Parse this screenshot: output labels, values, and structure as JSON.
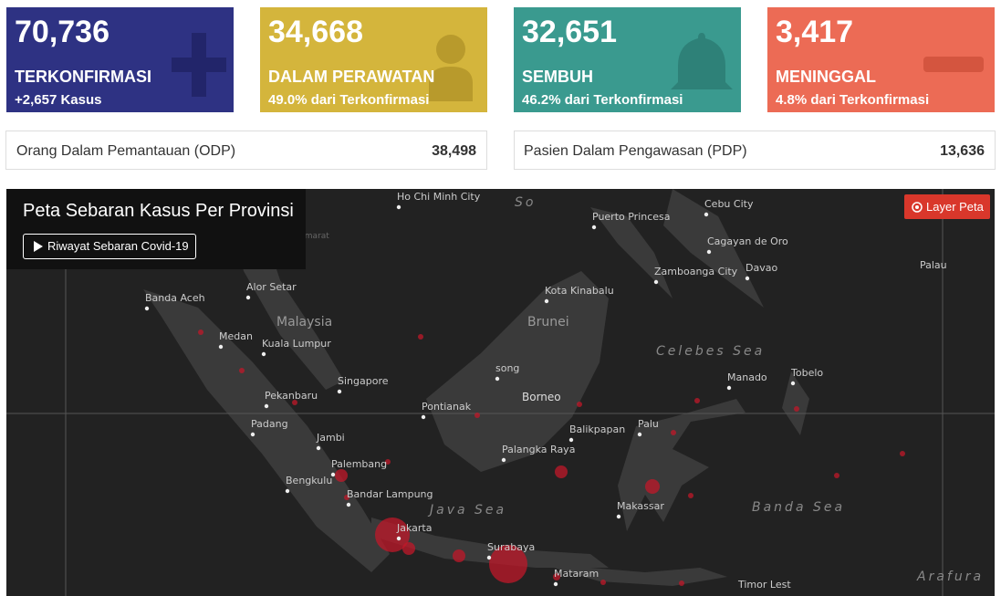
{
  "cards": [
    {
      "value": "70,736",
      "label": "TERKONFIRMASI",
      "sub": "+2,657 Kasus"
    },
    {
      "value": "34,668",
      "label": "DALAM PERAWATAN",
      "sub": "49.0% dari Terkonfirmasi"
    },
    {
      "value": "32,651",
      "label": "SEMBUH",
      "sub": "46.2% dari Terkonfirmasi"
    },
    {
      "value": "3,417",
      "label": "MENINGGAL",
      "sub": "4.8% dari Terkonfirmasi"
    }
  ],
  "monitoring": [
    {
      "label": "Orang Dalam Pemantauan (ODP)",
      "value": "38,498"
    },
    {
      "label": "Pasien Dalam Pengawasan (PDP)",
      "value": "13,636"
    }
  ],
  "map": {
    "title": "Peta Sebaran Kasus Per Provinsi",
    "history_button": "Riwayat Sebaran Covid-19",
    "layer_button": "Layer Peta",
    "places": [
      "Ho Chi Minh City",
      "Puerto Princesa",
      "Cebu City",
      "Cagayan de Oro",
      "Zamboanga City",
      "Davao",
      "Palau",
      "Nakhon Si Thammarat",
      "Banda Aceh",
      "Alor Setar",
      "Kota Kinabalu",
      "Malaysia",
      "Brunei",
      "Medan",
      "Kuala Lumpur",
      "Celebes Sea",
      "Singapore",
      "Manado",
      "Tobelo",
      "Pekanbaru",
      "Pontianak",
      "Borneo",
      "song",
      "Palu",
      "Padang",
      "Balikpapan",
      "Jambi",
      "Palangka Raya",
      "Palembang",
      "Bengkulu",
      "Bandar Lampung",
      "Java Sea",
      "Makassar",
      "Banda Sea",
      "Jakarta",
      "Surabaya",
      "Mataram",
      "Timor Lest",
      "Arafura",
      "So"
    ]
  }
}
